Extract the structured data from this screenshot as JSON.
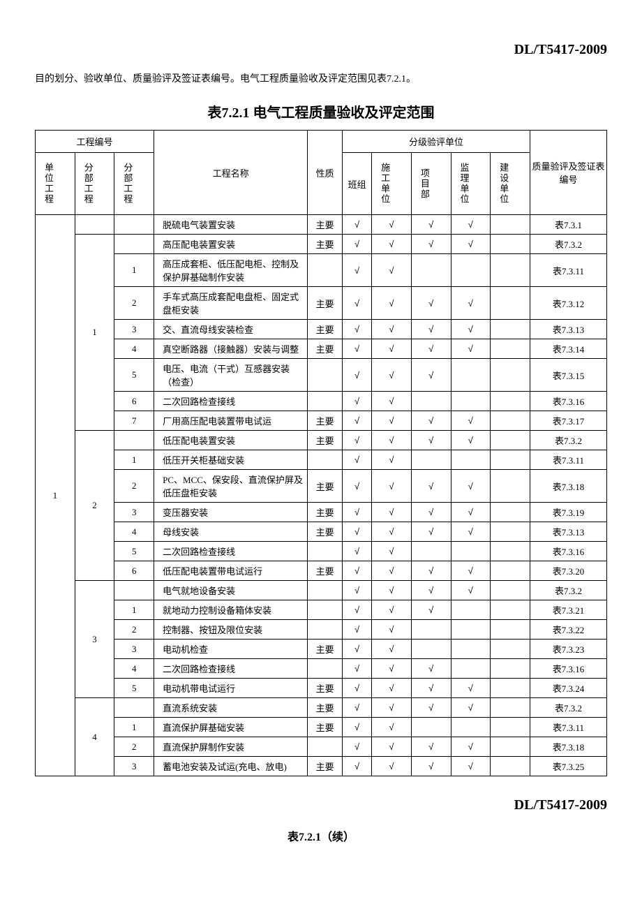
{
  "doc_code": "DL/T5417-2009",
  "intro": "目的划分、验收单位、质量验评及签证表编号。电气工程质量验收及评定范围见表7.2.1。",
  "table_title": "表7.2.1  电气工程质量验收及评定范围",
  "table_title_cont": "表7.2.1（续）",
  "headers": {
    "project_no": "工程编号",
    "unit_project": "单位工程",
    "div_project": "分部工程",
    "sub_div_project": "分部工程",
    "project_name": "工程名称",
    "nature": "性质",
    "grade_unit": "分级验评单位",
    "team": "班组",
    "construction_unit": "施工单位",
    "project_dept": "项目部",
    "supervision_unit": "监理单位",
    "build_unit": "建设单位",
    "quality_cert": "质量验评及签证表编号"
  },
  "check": "√",
  "unit_num": "1",
  "groups": [
    {
      "div": "",
      "rows": [
        {
          "sub": "",
          "name": "脱硫电气装置安装",
          "nature": "主要",
          "c": [
            1,
            1,
            1,
            1,
            0
          ],
          "ref": "表7.3.1"
        }
      ]
    },
    {
      "div": "1",
      "rows": [
        {
          "sub": "",
          "name": "高压配电装置安装",
          "nature": "主要",
          "c": [
            1,
            1,
            1,
            1,
            0
          ],
          "ref": "表7.3.2"
        },
        {
          "sub": "1",
          "name": "高压成套柜、低压配电柜、控制及保护屏基础制作安装",
          "nature": "",
          "c": [
            1,
            1,
            0,
            0,
            0
          ],
          "ref": "表7.3.11"
        },
        {
          "sub": "2",
          "name": "手车式高压成套配电盘柜、固定式盘柜安装",
          "nature": "主要",
          "c": [
            1,
            1,
            1,
            1,
            0
          ],
          "ref": "表7.3.12"
        },
        {
          "sub": "3",
          "name": "交、直流母线安装检查",
          "nature": "主要",
          "c": [
            1,
            1,
            1,
            1,
            0
          ],
          "ref": "表7.3.13"
        },
        {
          "sub": "4",
          "name": "真空断路器（接触器）安装与调整",
          "nature": "主要",
          "c": [
            1,
            1,
            1,
            1,
            0
          ],
          "ref": "表7.3.14"
        },
        {
          "sub": "5",
          "name": "电压、电流（干式）互感器安装（检查）",
          "nature": "",
          "c": [
            1,
            1,
            1,
            0,
            0
          ],
          "ref": "表7.3.15"
        },
        {
          "sub": "6",
          "name": "二次回路检查接线",
          "nature": "",
          "c": [
            1,
            1,
            0,
            0,
            0
          ],
          "ref": "表7.3.16"
        },
        {
          "sub": "7",
          "name": "厂用高压配电装置带电试运",
          "nature": "主要",
          "c": [
            1,
            1,
            1,
            1,
            0
          ],
          "ref": "表7.3.17"
        }
      ]
    },
    {
      "div": "2",
      "rows": [
        {
          "sub": "",
          "name": "低压配电装置安装",
          "nature": "主要",
          "c": [
            1,
            1,
            1,
            1,
            0
          ],
          "ref": "表7.3.2"
        },
        {
          "sub": "1",
          "name": "低压开关柜基础安装",
          "nature": "",
          "c": [
            1,
            1,
            0,
            0,
            0
          ],
          "ref": "表7.3.11"
        },
        {
          "sub": "2",
          "name": "PC、MCC、保安段、直流保护屏及低压盘柜安装",
          "nature": "主要",
          "c": [
            1,
            1,
            1,
            1,
            0
          ],
          "ref": "表7.3.18"
        },
        {
          "sub": "3",
          "name": "变压器安装",
          "nature": "主要",
          "c": [
            1,
            1,
            1,
            1,
            0
          ],
          "ref": "表7.3.19"
        },
        {
          "sub": "4",
          "name": "母线安装",
          "nature": "主要",
          "c": [
            1,
            1,
            1,
            1,
            0
          ],
          "ref": "表7.3.13"
        },
        {
          "sub": "5",
          "name": "二次回路检查接线",
          "nature": "",
          "c": [
            1,
            1,
            0,
            0,
            0
          ],
          "ref": "表7.3.16"
        },
        {
          "sub": "6",
          "name": "低压配电装置带电试运行",
          "nature": "主要",
          "c": [
            1,
            1,
            1,
            1,
            0
          ],
          "ref": "表7.3.20"
        }
      ]
    },
    {
      "div": "3",
      "rows": [
        {
          "sub": "",
          "name": "电气就地设备安装",
          "nature": "",
          "c": [
            1,
            1,
            1,
            1,
            0
          ],
          "ref": "表7.3.2"
        },
        {
          "sub": "1",
          "name": "就地动力控制设备箱体安装",
          "nature": "",
          "c": [
            1,
            1,
            1,
            0,
            0
          ],
          "ref": "表7.3.21"
        },
        {
          "sub": "2",
          "name": "控制器、按钮及限位安装",
          "nature": "",
          "c": [
            1,
            1,
            0,
            0,
            0
          ],
          "ref": "表7.3.22"
        },
        {
          "sub": "3",
          "name": "电动机检查",
          "nature": "主要",
          "c": [
            1,
            1,
            0,
            0,
            0
          ],
          "ref": "表7.3.23"
        },
        {
          "sub": "4",
          "name": "二次回路检查接线",
          "nature": "",
          "c": [
            1,
            1,
            1,
            0,
            0
          ],
          "ref": "表7.3.16"
        },
        {
          "sub": "5",
          "name": "电动机带电试运行",
          "nature": "主要",
          "c": [
            1,
            1,
            1,
            1,
            0
          ],
          "ref": "表7.3.24"
        }
      ]
    },
    {
      "div": "4",
      "rows": [
        {
          "sub": "",
          "name": "直流系统安装",
          "nature": "主要",
          "c": [
            1,
            1,
            1,
            1,
            0
          ],
          "ref": "表7.3.2"
        },
        {
          "sub": "1",
          "name": "直流保护屏基础安装",
          "nature": "主要",
          "c": [
            1,
            1,
            0,
            0,
            0
          ],
          "ref": "表7.3.11"
        },
        {
          "sub": "2",
          "name": "直流保护屏制作安装",
          "nature": "",
          "c": [
            1,
            1,
            1,
            1,
            0
          ],
          "ref": "表7.3.18"
        },
        {
          "sub": "3",
          "name": "蓄电池安装及试运(充电、放电)",
          "nature": "主要",
          "c": [
            1,
            1,
            1,
            1,
            0
          ],
          "ref": "表7.3.25"
        }
      ]
    }
  ],
  "colors": {
    "text": "#000000",
    "border": "#000000",
    "background": "#ffffff"
  }
}
